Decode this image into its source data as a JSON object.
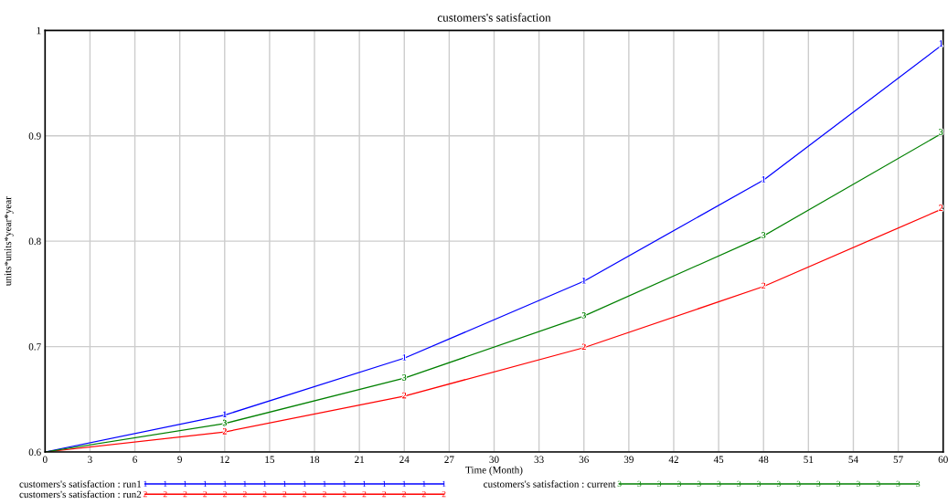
{
  "chart_data": {
    "type": "line",
    "title": "customers's satisfaction",
    "xlabel": "Time (Month)",
    "ylabel": "units*units*year*year",
    "x": [
      0,
      12,
      24,
      36,
      48,
      60
    ],
    "series": [
      {
        "name": "customers's satisfaction : run1",
        "color": "#0000ff",
        "values": [
          0.6,
          0.635,
          0.689,
          0.762,
          0.858,
          0.987
        ]
      },
      {
        "name": "customers's satisfaction : run2",
        "color": "#ff0000",
        "values": [
          0.6,
          0.619,
          0.653,
          0.699,
          0.757,
          0.831
        ]
      },
      {
        "name": "customers's satisfaction : current",
        "color": "#008000",
        "values": [
          0.6,
          0.627,
          0.67,
          0.729,
          0.805,
          0.903
        ]
      }
    ],
    "annotations": [
      {
        "text": "1",
        "x": 12,
        "y": 0.635
      },
      {
        "text": "1",
        "x": 24,
        "y": 0.689
      },
      {
        "text": "1",
        "x": 36,
        "y": 0.762
      },
      {
        "text": "1",
        "x": 48,
        "y": 0.858
      },
      {
        "text": "1",
        "x": 60,
        "y": 0.987
      },
      {
        "text": "2",
        "x": 12,
        "y": 0.619
      },
      {
        "text": "2",
        "x": 24,
        "y": 0.653
      },
      {
        "text": "2",
        "x": 36,
        "y": 0.699
      },
      {
        "text": "2",
        "x": 48,
        "y": 0.757
      },
      {
        "text": "2",
        "x": 60,
        "y": 0.831
      },
      {
        "text": "3",
        "x": 12,
        "y": 0.627
      },
      {
        "text": "3",
        "x": 24,
        "y": 0.67
      },
      {
        "text": "3",
        "x": 36,
        "y": 0.729
      },
      {
        "text": "3",
        "x": 48,
        "y": 0.805
      },
      {
        "text": "3",
        "x": 60,
        "y": 0.903
      }
    ],
    "xlim": [
      0,
      60
    ],
    "xticks": [
      0,
      3,
      6,
      9,
      12,
      15,
      18,
      21,
      24,
      27,
      30,
      33,
      36,
      39,
      42,
      45,
      48,
      51,
      54,
      57,
      60
    ],
    "ylim": [
      0.6,
      1
    ],
    "yticks": [
      0.6,
      0.7,
      0.8,
      0.9,
      1
    ],
    "grid": true,
    "legend": "bottom",
    "line_style": "solid"
  }
}
